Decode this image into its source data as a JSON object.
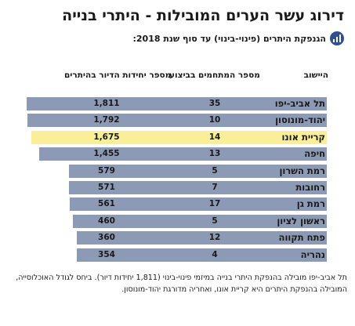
{
  "header": {
    "title": "דירוג עשר הערים המובילות - היתרי בנייה",
    "subtitle": "הגנפקת היתרים (פינוי-בינוי) עד סוף שנת 2018:",
    "icon": "bar-chart-icon"
  },
  "colors": {
    "bar_default": "#8d9ab5",
    "bar_highlight": "#f8ef98",
    "icon_bg": "#2f4f8f"
  },
  "chart_data": {
    "type": "table",
    "columns": [
      "היישוב",
      "מספר המתחמים בביצוע",
      "מספר יחידות הדיור בהיתרים"
    ],
    "rows": [
      {
        "city": "תל אביב-יפו",
        "projects": "35",
        "units": "1,811",
        "units_value": 1811,
        "highlight": false
      },
      {
        "city": "יהוד-מונוסון",
        "projects": "10",
        "units": "1,792",
        "units_value": 1792,
        "highlight": false
      },
      {
        "city": "קריית אונו",
        "projects": "14",
        "units": "1,675",
        "units_value": 1675,
        "highlight": true
      },
      {
        "city": "חיפה",
        "projects": "13",
        "units": "1,455",
        "units_value": 1455,
        "highlight": false
      },
      {
        "city": "רמת השרון",
        "projects": "5",
        "units": "579",
        "units_value": 579,
        "highlight": false
      },
      {
        "city": "רחובות",
        "projects": "7",
        "units": "571",
        "units_value": 571,
        "highlight": false
      },
      {
        "city": "רמת גן",
        "projects": "17",
        "units": "561",
        "units_value": 561,
        "highlight": false
      },
      {
        "city": "ראשון לציון",
        "projects": "5",
        "units": "460",
        "units_value": 460,
        "highlight": false
      },
      {
        "city": "פתח תקווה",
        "projects": "12",
        "units": "360",
        "units_value": 360,
        "highlight": false
      },
      {
        "city": "נהריה",
        "projects": "4",
        "units": "354",
        "units_value": 354,
        "highlight": false
      }
    ]
  },
  "footnote": "תל אביב-יפו מובילה בהנפקת היתרי בנייה במיזמי פינוי-בינוי (1,811 יחידות דיור). ביחס לגודל האוכלוסייה, המובילה בהנפקת היתרים היא קריית אונו, ואחריה מדורגת יהוד-מונוסון."
}
